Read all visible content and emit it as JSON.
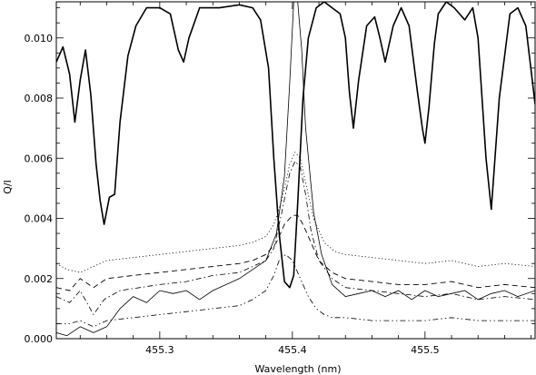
{
  "chart_data": {
    "type": "line",
    "title": "",
    "xlabel": "Wavelength (nm)",
    "ylabel": "Q/I",
    "xlim": [
      455.222,
      455.583
    ],
    "ylim": [
      0.0,
      0.0112
    ],
    "grid": false,
    "x_ticks": [
      {
        "value": 455.3,
        "label": "455.3"
      },
      {
        "value": 455.4,
        "label": "455.4"
      },
      {
        "value": 455.5,
        "label": "455.5"
      }
    ],
    "y_ticks": [
      {
        "value": 0.0,
        "label": "0.000"
      },
      {
        "value": 0.002,
        "label": "0.002"
      },
      {
        "value": 0.004,
        "label": "0.004"
      },
      {
        "value": 0.006,
        "label": "0.006"
      },
      {
        "value": 0.008,
        "label": "0.008"
      },
      {
        "value": 0.01,
        "label": "0.010"
      }
    ],
    "series": [
      {
        "style": "solid-thick",
        "x": [
          455.222,
          455.227,
          455.232,
          455.236,
          455.24,
          455.244,
          455.248,
          455.252,
          455.255,
          455.258,
          455.262,
          455.266,
          455.27,
          455.276,
          455.282,
          455.29,
          455.3,
          455.308,
          455.314,
          455.318,
          455.322,
          455.33,
          455.345,
          455.36,
          455.37,
          455.376,
          455.382,
          455.386,
          455.39,
          455.394,
          455.398,
          455.401,
          455.404,
          455.408,
          455.412,
          455.418,
          455.424,
          455.43,
          455.436,
          455.44,
          455.443,
          455.446,
          455.45,
          455.456,
          455.462,
          455.466,
          455.47,
          455.476,
          455.482,
          455.488,
          455.494,
          455.498,
          455.5,
          455.503,
          455.507,
          455.51,
          455.516,
          455.522,
          455.53,
          455.536,
          455.54,
          455.543,
          455.546,
          455.55,
          455.556,
          455.564,
          455.57,
          455.576,
          455.583
        ],
        "y": [
          0.0092,
          0.0097,
          0.0088,
          0.0072,
          0.0086,
          0.0096,
          0.0081,
          0.0058,
          0.0046,
          0.0038,
          0.0047,
          0.0048,
          0.0072,
          0.0094,
          0.0104,
          0.011,
          0.011,
          0.0108,
          0.0096,
          0.0092,
          0.01,
          0.011,
          0.011,
          0.0111,
          0.011,
          0.0106,
          0.009,
          0.006,
          0.0035,
          0.0019,
          0.0017,
          0.0021,
          0.0045,
          0.008,
          0.01,
          0.011,
          0.0112,
          0.011,
          0.0108,
          0.01,
          0.0082,
          0.007,
          0.0086,
          0.0104,
          0.0107,
          0.01,
          0.0092,
          0.0104,
          0.011,
          0.0104,
          0.0083,
          0.007,
          0.0065,
          0.0077,
          0.0098,
          0.0108,
          0.0112,
          0.011,
          0.0106,
          0.011,
          0.01,
          0.008,
          0.006,
          0.0043,
          0.008,
          0.0108,
          0.011,
          0.0104,
          0.0078
        ]
      },
      {
        "style": "solid-thin",
        "x": [
          455.222,
          455.23,
          455.24,
          455.25,
          455.26,
          455.27,
          455.28,
          455.29,
          455.3,
          455.31,
          455.32,
          455.33,
          455.34,
          455.35,
          455.36,
          455.37,
          455.38,
          455.388,
          455.394,
          455.398,
          455.401,
          455.404,
          455.407,
          455.41,
          455.416,
          455.422,
          455.43,
          455.44,
          455.45,
          455.46,
          455.47,
          455.48,
          455.49,
          455.5,
          455.51,
          455.52,
          455.53,
          455.54,
          455.55,
          455.56,
          455.57,
          455.583
        ],
        "y": [
          0.0002,
          0.0001,
          0.0004,
          0.0002,
          0.0004,
          0.001,
          0.0014,
          0.0012,
          0.0016,
          0.0015,
          0.0016,
          0.0013,
          0.0016,
          0.0018,
          0.002,
          0.0023,
          0.0026,
          0.0035,
          0.0054,
          0.0085,
          0.0112,
          0.0112,
          0.0096,
          0.007,
          0.0042,
          0.0028,
          0.0018,
          0.0014,
          0.0015,
          0.0016,
          0.0014,
          0.0016,
          0.0013,
          0.0016,
          0.0014,
          0.0015,
          0.0016,
          0.0013,
          0.0015,
          0.0016,
          0.0014,
          0.0016
        ]
      },
      {
        "style": "dotted",
        "x": [
          455.222,
          455.23,
          455.24,
          455.25,
          455.26,
          455.28,
          455.3,
          455.32,
          455.34,
          455.36,
          455.37,
          455.38,
          455.386,
          455.392,
          455.398,
          455.402,
          455.406,
          455.41,
          455.416,
          455.424,
          455.432,
          455.44,
          455.46,
          455.48,
          455.5,
          455.52,
          455.54,
          455.56,
          455.583
        ],
        "y": [
          0.0025,
          0.0023,
          0.0022,
          0.0024,
          0.0026,
          0.0027,
          0.0028,
          0.0029,
          0.003,
          0.0031,
          0.0032,
          0.0034,
          0.0038,
          0.0046,
          0.0058,
          0.0062,
          0.006,
          0.0052,
          0.004,
          0.0032,
          0.0029,
          0.0028,
          0.0027,
          0.0026,
          0.0025,
          0.0026,
          0.0024,
          0.0025,
          0.0024
        ]
      },
      {
        "style": "dashed",
        "x": [
          455.222,
          455.232,
          455.24,
          455.25,
          455.26,
          455.28,
          455.3,
          455.32,
          455.34,
          455.36,
          455.37,
          455.38,
          455.388,
          455.394,
          455.4,
          455.404,
          455.408,
          455.414,
          455.42,
          455.43,
          455.44,
          455.46,
          455.48,
          455.5,
          455.52,
          455.54,
          455.56,
          455.583
        ],
        "y": [
          0.0017,
          0.0016,
          0.002,
          0.0017,
          0.002,
          0.0021,
          0.0022,
          0.0023,
          0.0024,
          0.0025,
          0.0026,
          0.0028,
          0.0032,
          0.0038,
          0.0041,
          0.0041,
          0.0038,
          0.0032,
          0.0026,
          0.0022,
          0.002,
          0.0019,
          0.0018,
          0.0018,
          0.0019,
          0.0017,
          0.0018,
          0.0017
        ]
      },
      {
        "style": "dash-dot",
        "x": [
          455.222,
          455.232,
          455.24,
          455.25,
          455.258,
          455.27,
          455.3,
          455.32,
          455.34,
          455.36,
          455.37,
          455.38,
          455.386,
          455.392,
          455.398,
          455.402,
          455.406,
          455.41,
          455.414,
          455.42,
          455.43,
          455.44,
          455.46,
          455.48,
          455.5,
          455.52,
          455.54,
          455.56,
          455.583
        ],
        "y": [
          0.0014,
          0.0012,
          0.0016,
          0.0008,
          0.0013,
          0.0016,
          0.0018,
          0.0019,
          0.0021,
          0.0022,
          0.0024,
          0.0026,
          0.003,
          0.0042,
          0.0055,
          0.0059,
          0.0057,
          0.0048,
          0.0036,
          0.0026,
          0.002,
          0.0017,
          0.0016,
          0.0015,
          0.0014,
          0.0015,
          0.0013,
          0.0014,
          0.0013
        ]
      },
      {
        "style": "dash-dot-dot",
        "x": [
          455.222,
          455.232,
          455.24,
          455.25,
          455.26,
          455.28,
          455.3,
          455.32,
          455.34,
          455.36,
          455.37,
          455.38,
          455.386,
          455.39,
          455.395,
          455.4,
          455.406,
          455.412,
          455.418,
          455.424,
          455.43,
          455.44,
          455.46,
          455.48,
          455.5,
          455.52,
          455.54,
          455.56,
          455.583
        ],
        "y": [
          0.0005,
          0.0005,
          0.0006,
          0.0004,
          0.0006,
          0.0007,
          0.0008,
          0.0009,
          0.001,
          0.0011,
          0.0013,
          0.0016,
          0.0021,
          0.0026,
          0.0028,
          0.0026,
          0.002,
          0.0014,
          0.001,
          0.0008,
          0.0007,
          0.0007,
          0.0006,
          0.0006,
          0.0006,
          0.0007,
          0.0006,
          0.0006,
          0.0006
        ]
      }
    ]
  }
}
